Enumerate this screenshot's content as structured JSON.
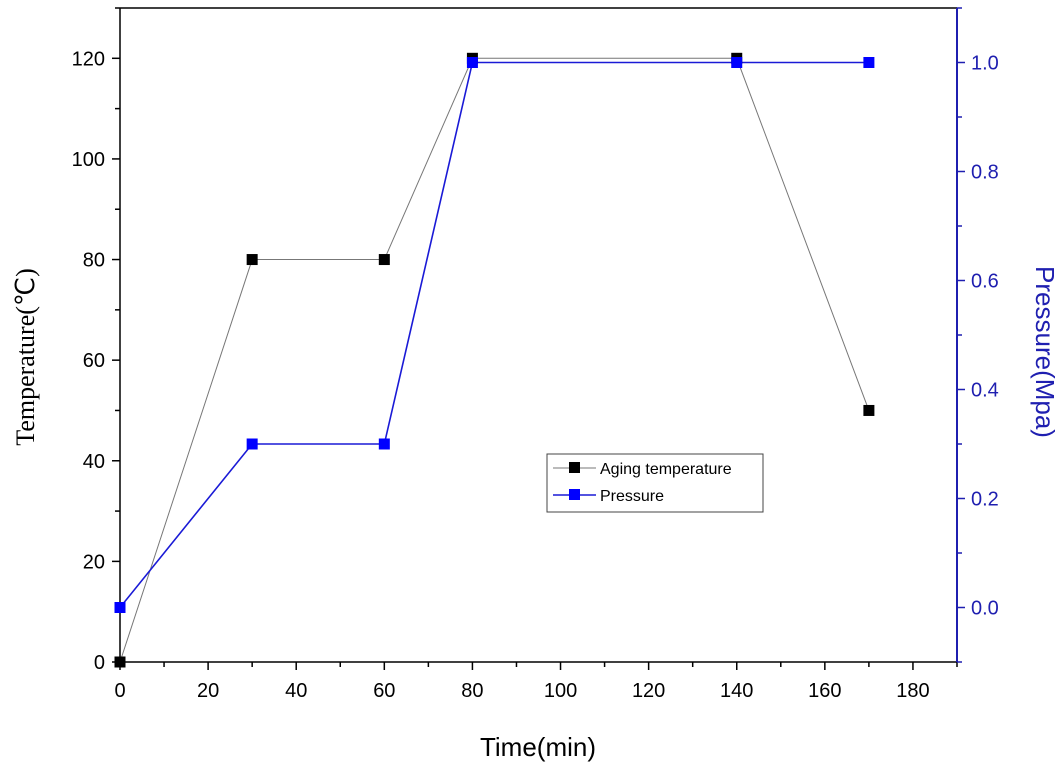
{
  "chart_data": {
    "type": "line",
    "xlabel": "Time(min)",
    "ylabel": "Temperature(℃)",
    "y2label": "Pressure(Mpa)",
    "xlim": [
      0,
      190
    ],
    "ylim": [
      0,
      130
    ],
    "y2lim": [
      -0.1,
      1.1
    ],
    "x_ticks": [
      0,
      20,
      40,
      60,
      80,
      100,
      120,
      140,
      160,
      180
    ],
    "y_ticks": [
      0,
      20,
      40,
      60,
      80,
      100,
      120
    ],
    "y2_ticks": [
      0.0,
      0.2,
      0.4,
      0.6,
      0.8,
      1.0
    ],
    "x_tick_labels": [
      "0",
      "20",
      "40",
      "60",
      "80",
      "100",
      "120",
      "140",
      "160",
      "180"
    ],
    "y_tick_labels": [
      "0",
      "20",
      "40",
      "60",
      "80",
      "100",
      "120"
    ],
    "y2_tick_labels": [
      "0.0",
      "0.2",
      "0.4",
      "0.6",
      "0.8",
      "1.0"
    ],
    "legend_position": "center",
    "series": [
      {
        "name": "Aging temperature",
        "axis": "left",
        "color": "#000000",
        "line_color": "#777777",
        "x": [
          0,
          30,
          60,
          80,
          140,
          170
        ],
        "values": [
          0,
          80,
          80,
          120,
          120,
          50
        ]
      },
      {
        "name": "Pressure",
        "axis": "right",
        "color": "#0000ff",
        "line_color": "#1a1ad6",
        "x": [
          0,
          30,
          60,
          80,
          140,
          170
        ],
        "values": [
          0,
          0.3,
          0.3,
          1.0,
          1.0,
          1.0
        ]
      }
    ],
    "colors": {
      "axis_left": "#000000",
      "axis_right": "#1f1fb0"
    }
  }
}
